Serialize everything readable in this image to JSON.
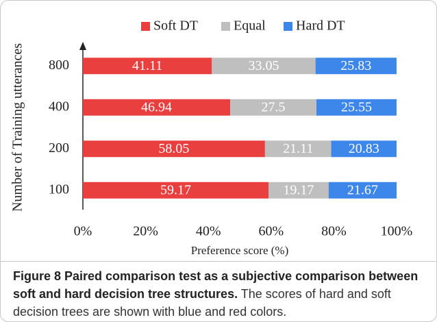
{
  "chart_data": {
    "type": "stacked-bar-horizontal",
    "categories": [
      "800",
      "400",
      "200",
      "100"
    ],
    "series": [
      {
        "name": "Soft DT",
        "color": "#ea3f3f",
        "values": [
          41.11,
          46.94,
          58.05,
          59.17
        ]
      },
      {
        "name": "Equal",
        "color": "#bfbfbf",
        "values": [
          33.05,
          27.5,
          21.11,
          19.17
        ]
      },
      {
        "name": "Hard DT",
        "color": "#3d86ea",
        "values": [
          25.83,
          25.55,
          20.83,
          21.67
        ]
      }
    ],
    "xlim": [
      0,
      100
    ],
    "xticks": [
      {
        "value": 0,
        "label": "0%"
      },
      {
        "value": 20,
        "label": "20%"
      },
      {
        "value": 40,
        "label": "40%"
      },
      {
        "value": 60,
        "label": "60%"
      },
      {
        "value": 80,
        "label": "80%"
      },
      {
        "value": 100,
        "label": "100%"
      }
    ],
    "x_label": "Preference score (%)",
    "y_label": "Number of Training utterances",
    "legend": "top"
  },
  "caption": {
    "title": "Figure 8 Paired comparison test as a subjective comparison between soft and hard decision tree structures.",
    "text": "The scores of hard and soft decision trees are shown with blue and red colors."
  }
}
